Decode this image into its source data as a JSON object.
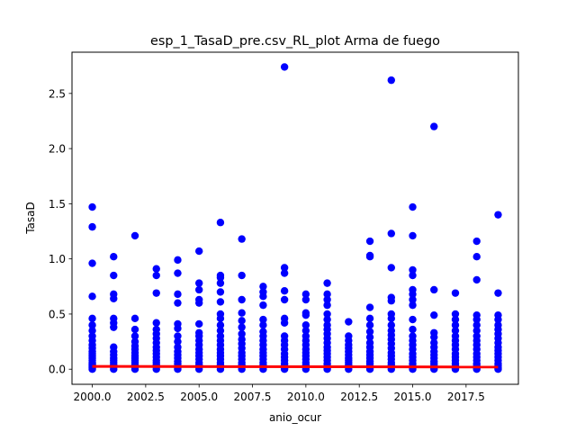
{
  "chart_data": {
    "type": "scatter",
    "title": "esp_1_TasaD_pre.csv_RL_plot Arma de fuego",
    "xlabel": "anio_ocur",
    "ylabel": "TasaD",
    "xlim": [
      1999.05,
      2019.95
    ],
    "ylim": [
      -0.137,
      2.874
    ],
    "xticks": [
      2000.0,
      2002.5,
      2005.0,
      2007.5,
      2010.0,
      2012.5,
      2015.0,
      2017.5
    ],
    "xtick_labels": [
      "2000.0",
      "2002.5",
      "2005.0",
      "2007.5",
      "2010.0",
      "2012.5",
      "2015.0",
      "2017.5"
    ],
    "yticks": [
      0.0,
      0.5,
      1.0,
      1.5,
      2.0,
      2.5
    ],
    "ytick_labels": [
      "0.0",
      "0.5",
      "1.0",
      "1.5",
      "2.0",
      "2.5"
    ],
    "grid": false,
    "point_color": "#0000ff",
    "line_color": "#ff0000",
    "regression_line": {
      "x": [
        2000,
        2019
      ],
      "y": [
        0.025,
        0.02
      ]
    },
    "series": [
      {
        "x": 2000,
        "y": [
          1.47,
          1.29,
          0.96,
          0.66,
          0.46,
          0.4,
          0.35,
          0.3,
          0.26,
          0.22,
          0.19,
          0.16,
          0.14,
          0.12,
          0.1,
          0.08,
          0.06,
          0.05,
          0.04,
          0.03,
          0.02,
          0.01,
          0.0
        ]
      },
      {
        "x": 2001,
        "y": [
          1.02,
          0.85,
          0.68,
          0.64,
          0.46,
          0.42,
          0.38,
          0.2,
          0.16,
          0.13,
          0.1,
          0.08,
          0.06,
          0.04,
          0.02,
          0.0
        ]
      },
      {
        "x": 2002,
        "y": [
          1.21,
          0.46,
          0.36,
          0.3,
          0.25,
          0.21,
          0.18,
          0.15,
          0.12,
          0.1,
          0.08,
          0.06,
          0.04,
          0.02,
          0.0
        ]
      },
      {
        "x": 2003,
        "y": [
          0.91,
          0.85,
          0.69,
          0.42,
          0.36,
          0.32,
          0.28,
          0.24,
          0.2,
          0.17,
          0.14,
          0.11,
          0.08,
          0.06,
          0.04,
          0.02,
          0.0
        ]
      },
      {
        "x": 2004,
        "y": [
          0.99,
          0.87,
          0.68,
          0.6,
          0.41,
          0.37,
          0.3,
          0.25,
          0.2,
          0.16,
          0.13,
          0.1,
          0.07,
          0.05,
          0.03,
          0.01,
          0.0
        ]
      },
      {
        "x": 2005,
        "y": [
          1.07,
          0.78,
          0.72,
          0.63,
          0.6,
          0.41,
          0.33,
          0.3,
          0.26,
          0.22,
          0.18,
          0.15,
          0.12,
          0.09,
          0.06,
          0.04,
          0.02,
          0.0
        ]
      },
      {
        "x": 2006,
        "y": [
          1.33,
          0.85,
          0.83,
          0.78,
          0.7,
          0.61,
          0.5,
          0.46,
          0.4,
          0.35,
          0.3,
          0.26,
          0.22,
          0.18,
          0.15,
          0.12,
          0.09,
          0.06,
          0.04,
          0.02,
          0.0
        ]
      },
      {
        "x": 2007,
        "y": [
          1.18,
          0.85,
          0.63,
          0.51,
          0.44,
          0.38,
          0.32,
          0.27,
          0.23,
          0.19,
          0.15,
          0.12,
          0.09,
          0.06,
          0.04,
          0.02,
          0.0
        ]
      },
      {
        "x": 2008,
        "y": [
          0.75,
          0.7,
          0.66,
          0.58,
          0.45,
          0.4,
          0.34,
          0.3,
          0.26,
          0.22,
          0.18,
          0.15,
          0.12,
          0.09,
          0.06,
          0.04,
          0.02,
          0.0
        ]
      },
      {
        "x": 2009,
        "y": [
          2.74,
          0.92,
          0.87,
          0.71,
          0.63,
          0.46,
          0.42,
          0.3,
          0.26,
          0.22,
          0.18,
          0.14,
          0.11,
          0.08,
          0.05,
          0.03,
          0.01,
          0.0
        ]
      },
      {
        "x": 2010,
        "y": [
          0.68,
          0.63,
          0.51,
          0.49,
          0.4,
          0.35,
          0.3,
          0.26,
          0.22,
          0.18,
          0.15,
          0.12,
          0.09,
          0.06,
          0.04,
          0.02,
          0.0
        ]
      },
      {
        "x": 2011,
        "y": [
          0.78,
          0.68,
          0.63,
          0.58,
          0.5,
          0.45,
          0.4,
          0.36,
          0.32,
          0.28,
          0.24,
          0.2,
          0.17,
          0.14,
          0.11,
          0.08,
          0.05,
          0.03,
          0.01,
          0.0
        ]
      },
      {
        "x": 2012,
        "y": [
          0.43,
          0.3,
          0.26,
          0.22,
          0.19,
          0.16,
          0.13,
          0.1,
          0.08,
          0.06,
          0.04,
          0.02,
          0.0
        ]
      },
      {
        "x": 2013,
        "y": [
          1.16,
          1.03,
          1.02,
          0.56,
          0.46,
          0.4,
          0.34,
          0.29,
          0.24,
          0.2,
          0.16,
          0.13,
          0.1,
          0.07,
          0.05,
          0.03,
          0.01,
          0.0
        ]
      },
      {
        "x": 2014,
        "y": [
          2.62,
          1.23,
          0.92,
          0.65,
          0.62,
          0.5,
          0.46,
          0.4,
          0.35,
          0.31,
          0.27,
          0.23,
          0.19,
          0.15,
          0.12,
          0.09,
          0.06,
          0.04,
          0.02,
          0.0
        ]
      },
      {
        "x": 2015,
        "y": [
          1.47,
          1.21,
          0.9,
          0.85,
          0.72,
          0.68,
          0.63,
          0.58,
          0.45,
          0.36,
          0.3,
          0.26,
          0.22,
          0.18,
          0.14,
          0.11,
          0.08,
          0.05,
          0.03,
          0.01,
          0.0
        ]
      },
      {
        "x": 2016,
        "y": [
          2.2,
          0.72,
          0.49,
          0.33,
          0.29,
          0.24,
          0.2,
          0.16,
          0.13,
          0.1,
          0.07,
          0.05,
          0.03,
          0.01,
          0.0
        ]
      },
      {
        "x": 2017,
        "y": [
          0.69,
          0.5,
          0.45,
          0.4,
          0.35,
          0.3,
          0.26,
          0.22,
          0.18,
          0.14,
          0.11,
          0.08,
          0.05,
          0.03,
          0.01,
          0.0
        ]
      },
      {
        "x": 2018,
        "y": [
          1.16,
          1.02,
          0.81,
          0.49,
          0.45,
          0.4,
          0.35,
          0.3,
          0.26,
          0.22,
          0.18,
          0.14,
          0.11,
          0.08,
          0.05,
          0.03,
          0.01,
          0.0
        ]
      },
      {
        "x": 2019,
        "y": [
          1.4,
          0.69,
          0.49,
          0.45,
          0.4,
          0.36,
          0.32,
          0.28,
          0.24,
          0.2,
          0.17,
          0.14,
          0.11,
          0.08,
          0.05,
          0.03,
          0.01,
          0.0
        ]
      }
    ]
  }
}
